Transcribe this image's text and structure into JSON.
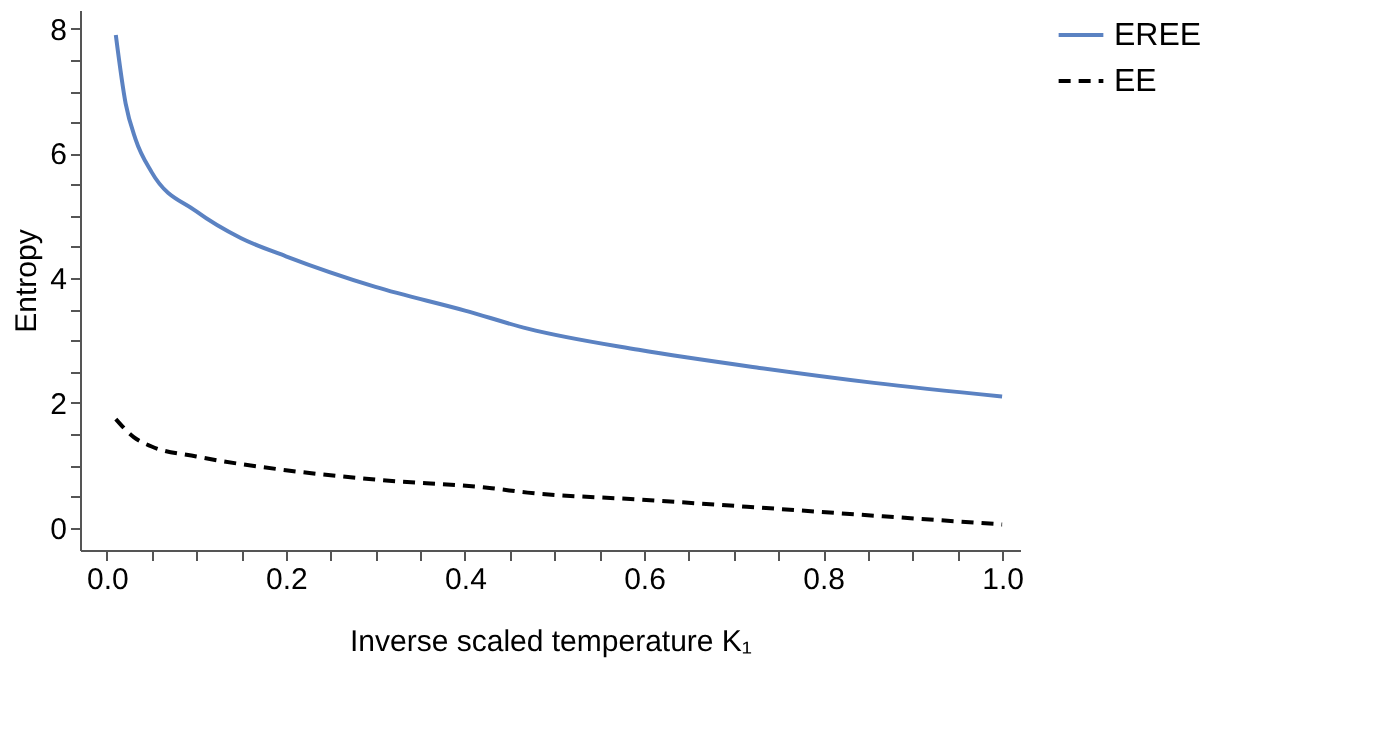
{
  "chart_data": {
    "type": "line",
    "xlabel": "Inverse scaled temperature K₁",
    "ylabel": "Entropy",
    "xlim": [
      -0.03,
      1.02
    ],
    "ylim": [
      -0.36,
      8.3
    ],
    "xticks": [
      {
        "value": 0,
        "label": "0.0"
      },
      {
        "value": 0.05,
        "label": null
      },
      {
        "value": 0.1,
        "label": null
      },
      {
        "value": 0.15,
        "label": null
      },
      {
        "value": 0.2,
        "label": "0.2"
      },
      {
        "value": 0.25,
        "label": null
      },
      {
        "value": 0.3,
        "label": null
      },
      {
        "value": 0.35,
        "label": null
      },
      {
        "value": 0.4,
        "label": "0.4"
      },
      {
        "value": 0.45,
        "label": null
      },
      {
        "value": 0.5,
        "label": null
      },
      {
        "value": 0.55,
        "label": null
      },
      {
        "value": 0.6,
        "label": "0.6"
      },
      {
        "value": 0.65,
        "label": null
      },
      {
        "value": 0.7,
        "label": null
      },
      {
        "value": 0.75,
        "label": null
      },
      {
        "value": 0.8,
        "label": "0.8"
      },
      {
        "value": 0.85,
        "label": null
      },
      {
        "value": 0.9,
        "label": null
      },
      {
        "value": 0.95,
        "label": null
      },
      {
        "value": 1,
        "label": "1.0"
      }
    ],
    "yticks": [
      0,
      {
        "value": 0.5,
        "label": null
      },
      {
        "value": 1,
        "label": null
      },
      {
        "value": 1.5,
        "label": null
      },
      2,
      {
        "value": 2.5,
        "label": null
      },
      {
        "value": 3,
        "label": null
      },
      {
        "value": 3.5,
        "label": null
      },
      4,
      {
        "value": 4.5,
        "label": null
      },
      {
        "value": 5,
        "label": null
      },
      {
        "value": 5.5,
        "label": null
      },
      6,
      {
        "value": 6.5,
        "label": null
      },
      {
        "value": 7,
        "label": null
      },
      {
        "value": 7.5,
        "label": null
      },
      8
    ],
    "grid": false,
    "legend": "right",
    "marker": "none",
    "series": [
      {
        "name": "EREE",
        "color": "#5b82c2",
        "line_style": "solid",
        "x": [
          0.01,
          0.021,
          0.032,
          0.05,
          0.1,
          0.15,
          0.2,
          0.3,
          0.4,
          0.47,
          0.594,
          0.729,
          0.857,
          1.0
        ],
        "values": [
          7.9,
          6.8,
          6.23,
          5.7,
          5.07,
          4.64,
          4.35,
          3.86,
          3.48,
          3.19,
          2.85,
          2.56,
          2.32,
          2.1
        ]
      },
      {
        "name": "EE",
        "color": "#000000",
        "line_style": "dashed",
        "x": [
          0.01,
          0.03,
          0.05,
          0.1,
          0.2,
          0.3,
          0.43,
          0.47,
          0.594,
          0.729,
          0.857,
          1.0
        ],
        "values": [
          1.74,
          1.45,
          1.3,
          1.14,
          0.92,
          0.77,
          0.63,
          0.56,
          0.45,
          0.32,
          0.19,
          0.05
        ]
      }
    ]
  }
}
